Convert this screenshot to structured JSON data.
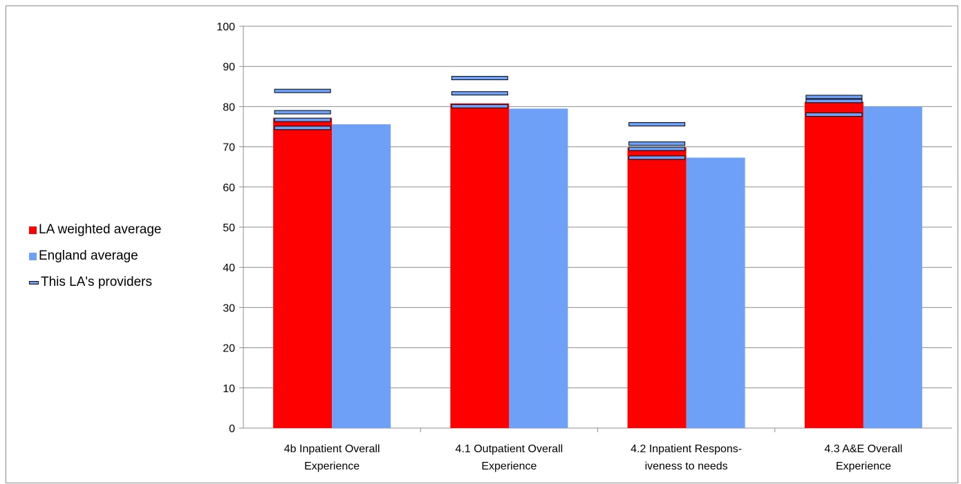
{
  "chart_data": {
    "type": "bar",
    "categories": [
      [
        "4b Inpatient Overall",
        "Experience"
      ],
      [
        "4.1 Outpatient Overall",
        "Experience"
      ],
      [
        "4.2 Inpatient Respons-",
        "iveness to needs"
      ],
      [
        "4.3 A&E Overall",
        "Experience"
      ]
    ],
    "series": [
      {
        "name": "LA weighted average",
        "values": [
          77.2,
          80.8,
          69.8,
          81.2
        ],
        "color": "#ff0000"
      },
      {
        "name": "England average",
        "values": [
          75.6,
          79.5,
          67.3,
          80.0
        ],
        "color": "#6fa0f8"
      }
    ],
    "providers": {
      "name": "This LA's providers",
      "color": "#6fa0f8",
      "values": [
        [
          83.9,
          78.6,
          76.7,
          74.7
        ],
        [
          87.1,
          83.3,
          80.1
        ],
        [
          75.6,
          70.8,
          69.5,
          67.3
        ],
        [
          82.4,
          81.4,
          78.0
        ]
      ]
    },
    "ylim": [
      0,
      100
    ],
    "yticks": [
      0,
      10,
      20,
      30,
      40,
      50,
      60,
      70,
      80,
      90,
      100
    ],
    "grid": true,
    "legend_position": "left",
    "xlabel": "",
    "ylabel": "",
    "title": ""
  },
  "legend": {
    "la_label": "LA weighted average",
    "england_label": "England average",
    "providers_label": "This LA's providers"
  }
}
